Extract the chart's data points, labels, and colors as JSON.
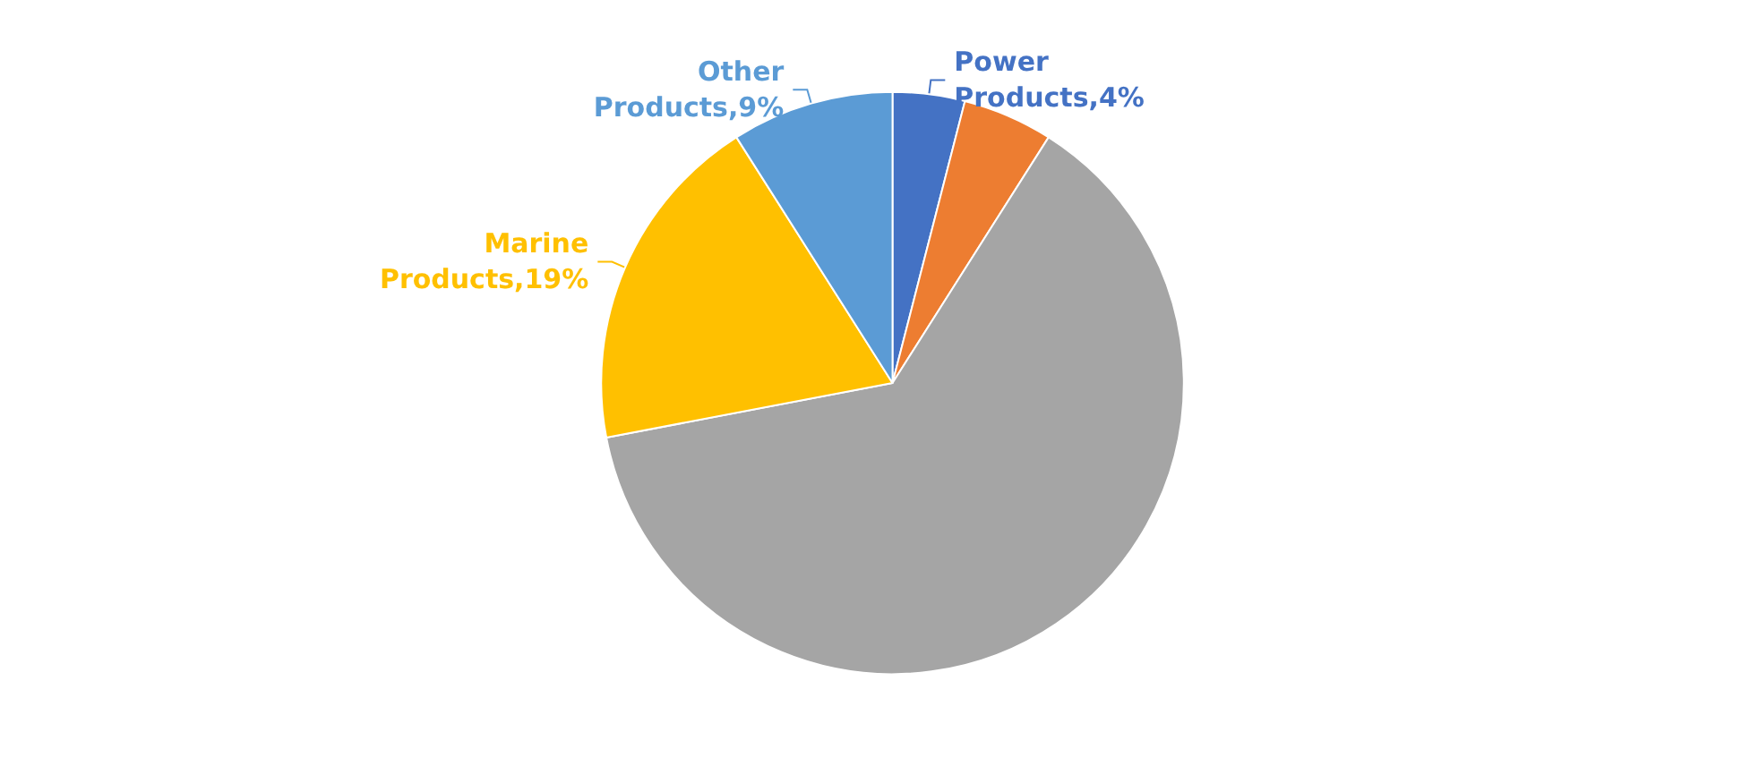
{
  "chart_data": {
    "type": "pie",
    "categories": [
      "Power Products",
      null,
      null,
      "Marine Products",
      "Other Products"
    ],
    "values": [
      4,
      5,
      63,
      19,
      9
    ],
    "colors": [
      "#4472c4",
      "#ed7d31",
      "#a5a5a5",
      "#ffc000",
      "#5b9bd5"
    ],
    "value_labels": [
      "4%",
      null,
      null,
      "19%",
      "9%"
    ]
  }
}
